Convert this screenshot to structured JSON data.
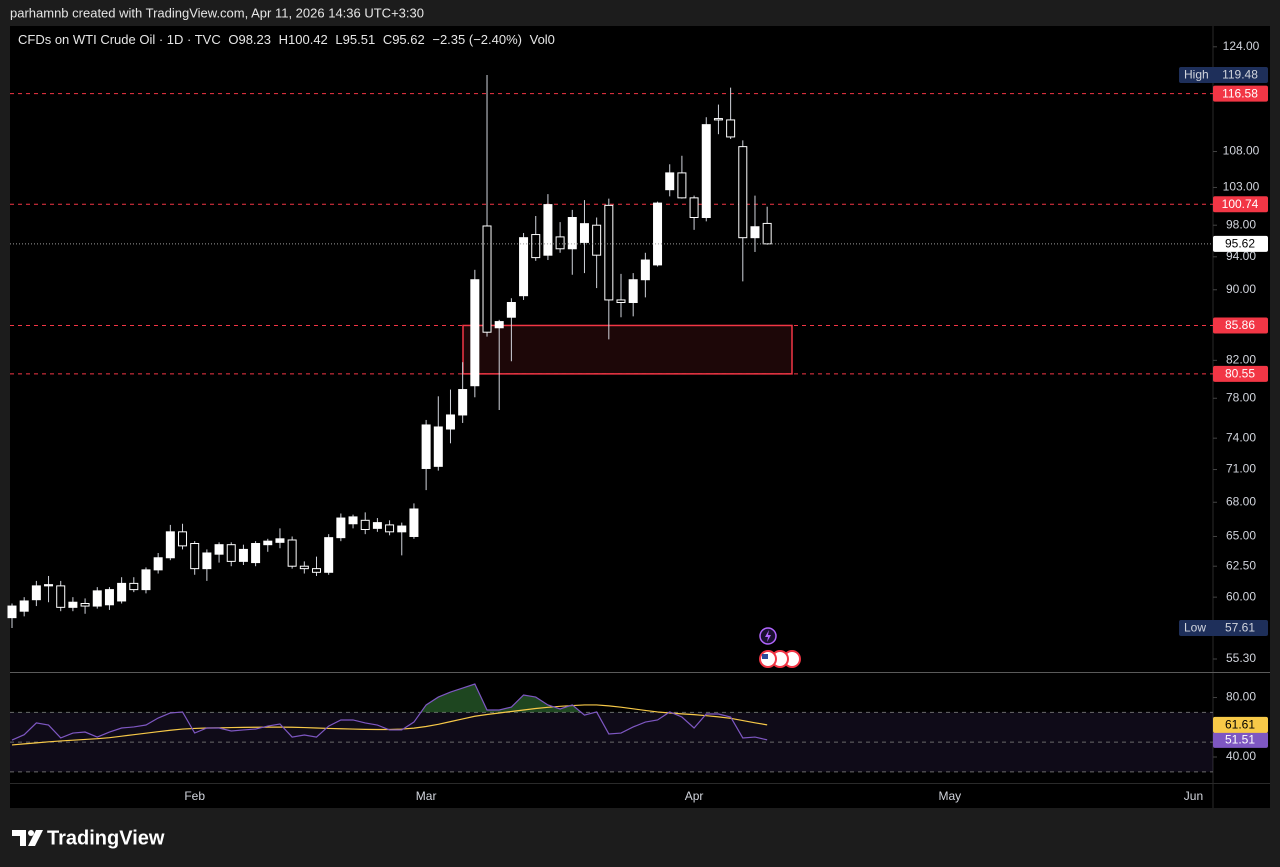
{
  "header_note": "parhamnb created with TradingView.com, Apr 11, 2026 14:36 UTC+3:30",
  "brand": "TradingView",
  "chart_data": [
    {
      "type": "candlestick",
      "title": "CFDs on WTI Crude Oil · 1D · TVC",
      "ohlc_legend": [
        "O98.23",
        "H100.42",
        "L95.51",
        "C95.62"
      ],
      "change": "−2.35 (−2.40%)",
      "volume": "Vol0",
      "categories": [
        null,
        null,
        null,
        null,
        null,
        null,
        null,
        null,
        null,
        null,
        null,
        null,
        null,
        null,
        null,
        "Feb",
        null,
        null,
        null,
        null,
        null,
        null,
        null,
        null,
        null,
        null,
        null,
        null,
        null,
        null,
        null,
        null,
        null,
        null,
        "Mar",
        null,
        null,
        null,
        null,
        null,
        null,
        null,
        null,
        null,
        null,
        null,
        null,
        null,
        null,
        null,
        null,
        null,
        null,
        null,
        null,
        null,
        "Apr",
        null,
        null,
        null,
        null,
        null,
        null,
        null,
        null,
        null,
        null,
        null,
        null,
        null,
        null,
        null,
        null,
        null,
        null,
        null,
        null,
        "May",
        null,
        null,
        null,
        null,
        null,
        null,
        null,
        null,
        null,
        null,
        null,
        null,
        null,
        null,
        null,
        null,
        null,
        null,
        null,
        "Jun"
      ],
      "open": [
        58.4,
        58.9,
        59.8,
        60.9,
        60.9,
        59.2,
        59.5,
        59.3,
        59.4,
        59.7,
        61.1,
        60.6,
        62.2,
        63.2,
        65.4,
        64.4,
        62.3,
        63.5,
        64.3,
        62.9,
        62.8,
        64.3,
        64.5,
        64.7,
        62.5,
        62.3,
        62.0,
        64.9,
        66.1,
        66.4,
        65.7,
        66.0,
        65.4,
        65.0,
        71.1,
        71.3,
        74.9,
        76.3,
        79.3,
        97.9,
        85.6,
        86.8,
        89.3,
        96.8,
        94.2,
        96.5,
        95.0,
        95.8,
        98.0,
        100.6,
        88.8,
        88.5,
        91.2,
        93.0,
        102.7,
        105.0,
        101.6,
        99.0,
        112.8,
        112.6,
        108.7,
        96.4,
        98.23,
        null,
        null,
        null,
        null,
        null,
        null,
        null,
        null,
        null,
        null,
        null,
        null,
        null,
        null,
        null,
        null,
        null,
        null,
        null,
        null,
        null,
        null,
        null,
        null,
        null,
        null,
        null,
        null,
        null,
        null,
        null,
        null,
        null,
        null,
        null
      ],
      "high": [
        59.5,
        60.0,
        61.3,
        61.7,
        61.3,
        60.0,
        59.9,
        60.8,
        60.8,
        61.6,
        61.6,
        62.4,
        63.6,
        66.0,
        66.1,
        64.6,
        63.9,
        64.5,
        64.5,
        64.3,
        64.6,
        64.8,
        65.7,
        65.0,
        62.9,
        63.3,
        65.2,
        67.0,
        66.9,
        67.1,
        66.6,
        66.4,
        66.2,
        67.9,
        75.8,
        78.2,
        78.9,
        81.8,
        92.4,
        119.48,
        86.5,
        89.0,
        97.0,
        99.2,
        102.1,
        98.4,
        100.0,
        101.3,
        99.0,
        101.5,
        91.9,
        92.0,
        94.5,
        101.1,
        106.2,
        107.4,
        101.9,
        113.0,
        114.9,
        117.5,
        109.6,
        101.9,
        100.42,
        null,
        null,
        null,
        null,
        null,
        null,
        null,
        null,
        null,
        null,
        null,
        null,
        null,
        null,
        null,
        null,
        null,
        null,
        null,
        null,
        null,
        null,
        null,
        null,
        null,
        null,
        null,
        null,
        null,
        null,
        null,
        null,
        null,
        null,
        null
      ],
      "low": [
        57.61,
        58.5,
        59.3,
        59.6,
        58.9,
        58.9,
        58.7,
        59.1,
        59.0,
        59.5,
        60.4,
        60.3,
        61.9,
        63.0,
        63.9,
        61.8,
        61.3,
        62.8,
        62.5,
        62.6,
        62.5,
        63.7,
        64.0,
        62.3,
        61.9,
        61.7,
        61.8,
        64.6,
        65.7,
        65.2,
        65.4,
        65.1,
        63.4,
        64.8,
        69.1,
        70.9,
        73.5,
        75.5,
        78.1,
        84.6,
        76.8,
        81.9,
        88.8,
        93.5,
        93.6,
        94.5,
        91.8,
        92.0,
        90.2,
        84.3,
        86.8,
        86.9,
        89.1,
        92.8,
        101.8,
        101.5,
        97.4,
        98.5,
        110.5,
        109.8,
        91.0,
        94.6,
        95.51,
        null,
        null,
        null,
        null,
        null,
        null,
        null,
        null,
        null,
        null,
        null,
        null,
        null,
        null,
        null,
        null,
        null,
        null,
        null,
        null,
        null,
        null,
        null,
        null,
        null,
        null,
        null,
        null,
        null,
        null,
        null,
        null,
        null,
        null,
        null
      ],
      "close": [
        59.3,
        59.7,
        60.9,
        61.0,
        59.2,
        59.6,
        59.3,
        60.5,
        60.6,
        61.1,
        60.6,
        62.2,
        63.2,
        65.4,
        64.2,
        62.3,
        63.6,
        64.3,
        62.9,
        63.9,
        64.4,
        64.6,
        64.8,
        62.5,
        62.3,
        62.0,
        64.9,
        66.6,
        66.7,
        65.6,
        66.2,
        65.4,
        65.9,
        67.4,
        75.3,
        75.1,
        76.3,
        78.9,
        91.2,
        85.1,
        86.3,
        88.5,
        96.4,
        93.9,
        100.7,
        95.0,
        99.0,
        98.2,
        94.2,
        88.8,
        88.5,
        91.2,
        93.6,
        100.9,
        105.0,
        101.6,
        99.0,
        111.9,
        112.6,
        110.1,
        96.4,
        97.8,
        95.62,
        null,
        null,
        null,
        null,
        null,
        null,
        null,
        null,
        null,
        null,
        null,
        null,
        null,
        null,
        null,
        null,
        null,
        null,
        null,
        null,
        null,
        null,
        null,
        null,
        null,
        null,
        null,
        null,
        null,
        null,
        null,
        null,
        null,
        null,
        null
      ],
      "up_color": "#ffffff",
      "down_color": "#000000",
      "wick_color": "#d1d4dc",
      "log_scale": true,
      "ylim": [
        54.36,
        127.45
      ],
      "yticks": [
        {
          "value": 124,
          "label": "124.00"
        },
        {
          "value": 108,
          "label": "108.00"
        },
        {
          "value": 103,
          "label": "103.00"
        },
        {
          "value": 98,
          "label": "98.00"
        },
        {
          "value": 94,
          "label": "94.00"
        },
        {
          "value": 90,
          "label": "90.00"
        },
        {
          "value": 82,
          "label": "82.00"
        },
        {
          "value": 78,
          "label": "78.00"
        },
        {
          "value": 74,
          "label": "74.00"
        },
        {
          "value": 71,
          "label": "71.00"
        },
        {
          "value": 68,
          "label": "68.00"
        },
        {
          "value": 65,
          "label": "65.00"
        },
        {
          "value": 62.5,
          "label": "62.50"
        },
        {
          "value": 60,
          "label": "60.00"
        },
        {
          "value": 55.3,
          "label": "55.30"
        }
      ],
      "levels": [
        116.58,
        100.74,
        85.86,
        80.55
      ],
      "level_color": "#f23645",
      "high_label": "High",
      "low_label": "Low"
    },
    {
      "type": "line",
      "series": [
        {
          "color": "#7e57c2",
          "values": [
            51.4,
            55.0,
            62.9,
            61.5,
            52.8,
            56.1,
            56.8,
            53.4,
            56.8,
            59.5,
            60.2,
            61.5,
            66.2,
            69.6,
            70.3,
            56.1,
            59.5,
            59.5,
            57.5,
            58.2,
            58.8,
            60.8,
            62.2,
            53.4,
            54.8,
            53.4,
            60.8,
            64.9,
            64.9,
            62.9,
            61.5,
            58.2,
            58.2,
            63.5,
            75.0,
            80.3,
            83.7,
            86.4,
            89.1,
            71.6,
            71.6,
            73.6,
            81.7,
            80.3,
            75.0,
            72.3,
            75.0,
            68.2,
            70.3,
            55.5,
            56.1,
            60.2,
            63.5,
            64.9,
            70.3,
            66.9,
            59.5,
            68.9,
            68.9,
            66.9,
            52.8,
            53.4,
            51.51,
            null,
            null,
            null,
            null,
            null,
            null,
            null,
            null,
            null,
            null,
            null,
            null,
            null,
            null,
            null,
            null,
            null,
            null,
            null,
            null,
            null,
            null,
            null,
            null,
            null,
            null,
            null,
            null,
            null,
            null,
            null,
            null,
            null,
            null,
            null
          ]
        },
        {
          "color": "#f7c948",
          "values": [
            48.1,
            48.8,
            49.5,
            50.2,
            50.8,
            51.3,
            51.8,
            52.3,
            53.0,
            54.0,
            55.0,
            56.0,
            57.0,
            58.0,
            58.8,
            59.2,
            59.5,
            59.6,
            59.8,
            59.9,
            60.0,
            60.1,
            60.1,
            60.0,
            59.8,
            59.5,
            59.2,
            59.0,
            58.8,
            58.6,
            58.5,
            58.5,
            58.8,
            59.4,
            60.5,
            62.0,
            63.8,
            65.6,
            67.4,
            68.6,
            69.6,
            70.6,
            71.6,
            72.6,
            73.4,
            74.1,
            74.6,
            75.0,
            75.0,
            74.4,
            73.5,
            72.4,
            71.3,
            70.3,
            69.6,
            69.0,
            68.5,
            67.8,
            67.0,
            66.0,
            64.5,
            63.0,
            61.61,
            null,
            null,
            null,
            null,
            null,
            null,
            null,
            null,
            null,
            null,
            null,
            null,
            null,
            null,
            null,
            null,
            null,
            null,
            null,
            null,
            null,
            null,
            null,
            null,
            null,
            null,
            null,
            null,
            null,
            null,
            null,
            null,
            null,
            null,
            null
          ]
        }
      ],
      "ylim": [
        22.5,
        96.5
      ],
      "yticks": [
        {
          "value": 80,
          "label": "80.00"
        },
        {
          "value": 40,
          "label": "40.00"
        }
      ],
      "levels": [
        70,
        50,
        30
      ],
      "overbought_color": "#4caf50"
    }
  ]
}
